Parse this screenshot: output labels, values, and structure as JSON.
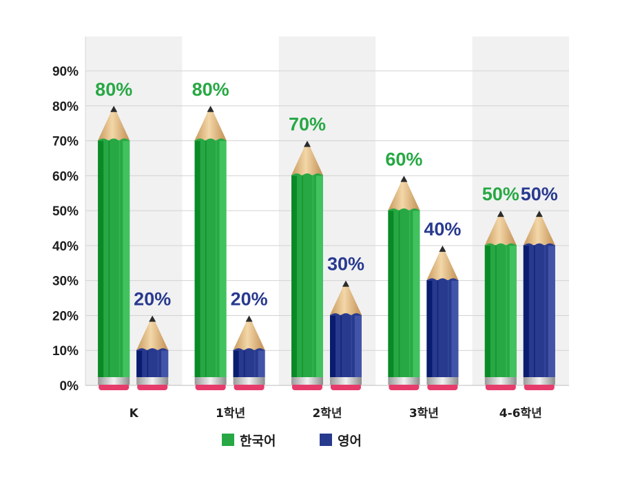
{
  "chart_data": {
    "type": "bar",
    "categories": [
      "K",
      "1학년",
      "2학년",
      "3학년",
      "4-6학년"
    ],
    "series": [
      {
        "name": "한국어",
        "values": [
          80,
          80,
          70,
          60,
          50
        ],
        "color": "#27a844"
      },
      {
        "name": "영어",
        "values": [
          20,
          20,
          30,
          40,
          50
        ],
        "color": "#283a8e"
      }
    ],
    "value_labels": [
      [
        "80%",
        "80%",
        "70%",
        "60%",
        "50%"
      ],
      [
        "20%",
        "20%",
        "30%",
        "40%",
        "50%"
      ]
    ],
    "y_ticks": [
      "0%",
      "10%",
      "20%",
      "30%",
      "40%",
      "50%",
      "60%",
      "70%",
      "80%",
      "90%"
    ],
    "ylim": [
      0,
      90
    ],
    "grid": true,
    "legend_position": "bottom",
    "bar_style": "pencil"
  },
  "colors": {
    "korean": "#27a844",
    "english": "#283a8e",
    "wood": "#e6c089",
    "band": "#f1f1f2",
    "eraser": "#e63b6b"
  }
}
